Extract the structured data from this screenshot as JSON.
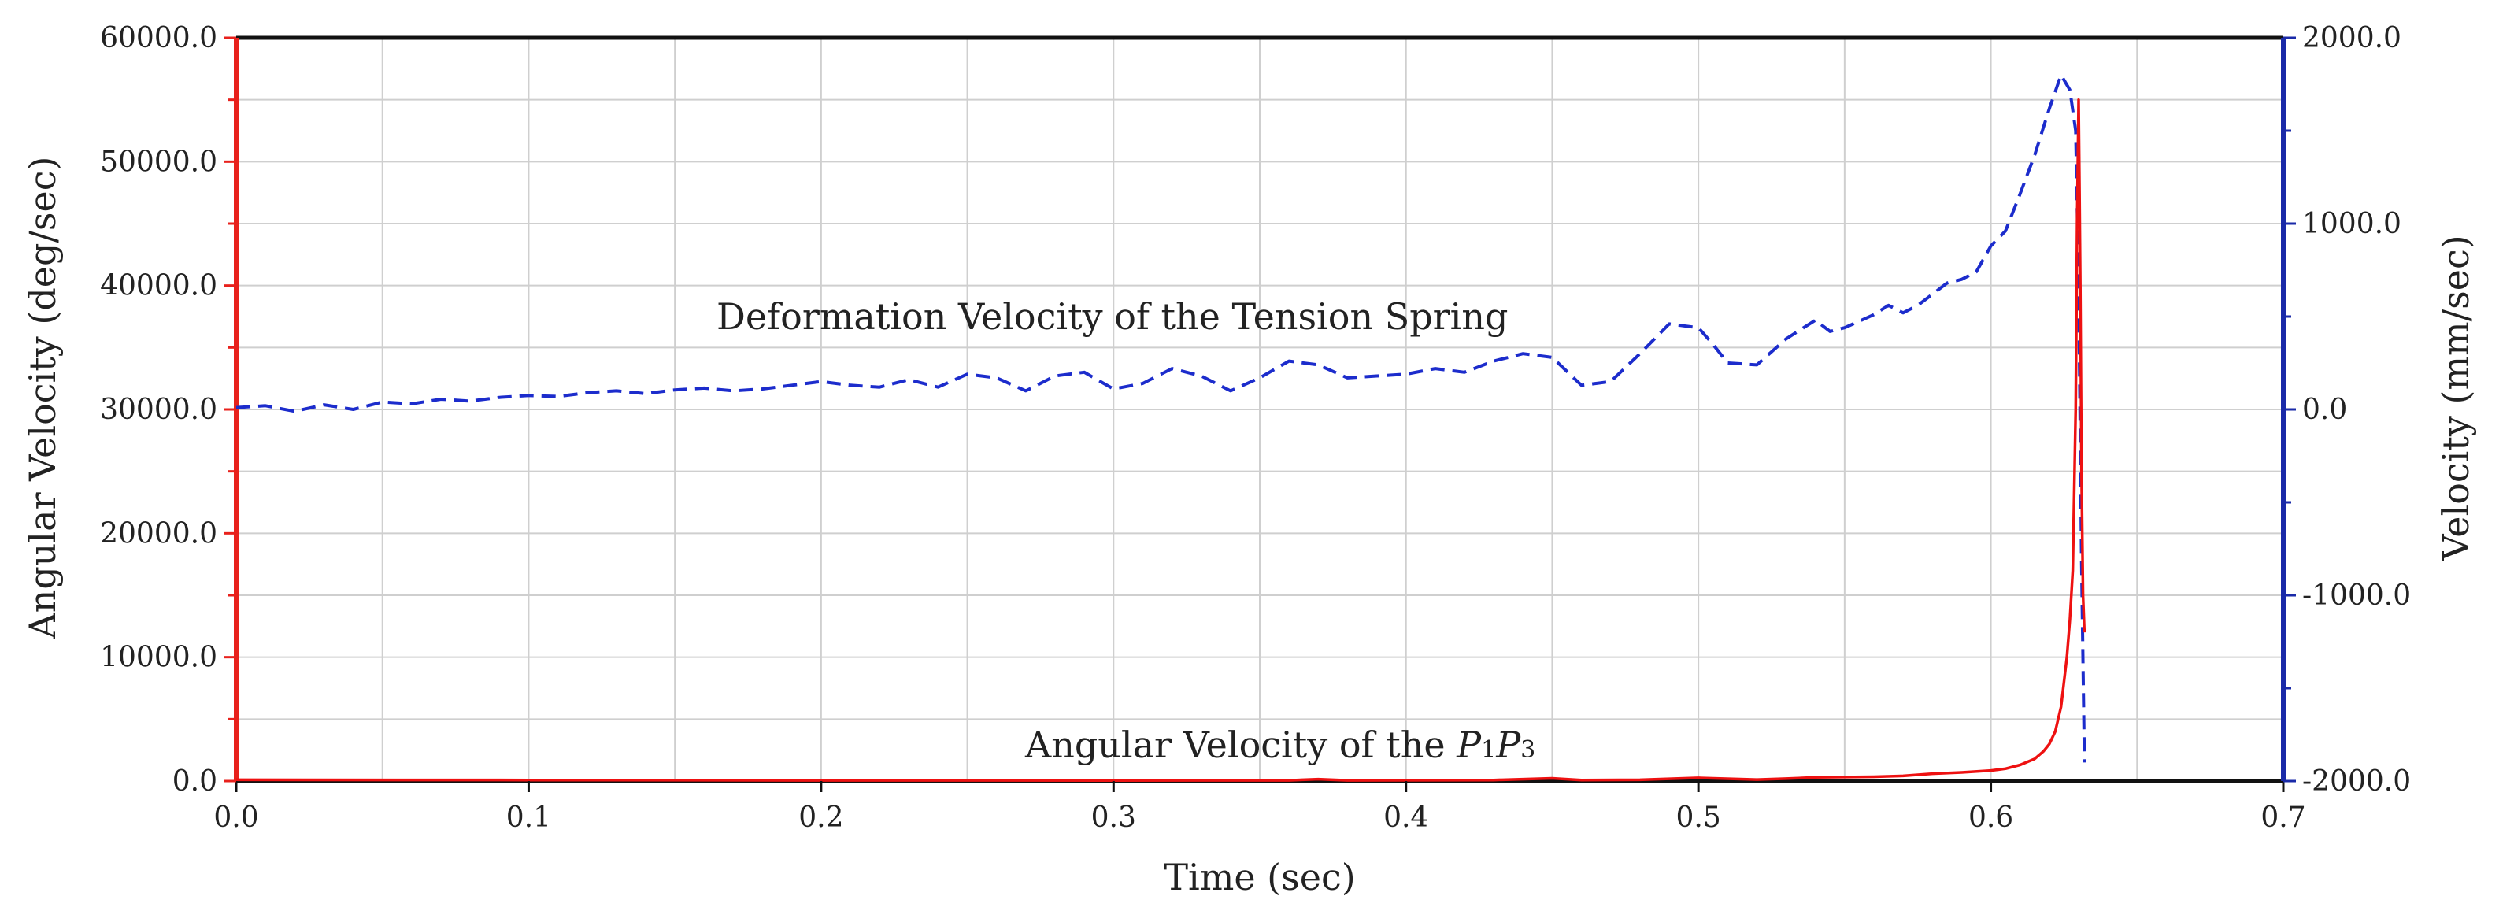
{
  "chart_data": {
    "type": "line",
    "title": "",
    "xlabel": "Time (sec)",
    "ylabel_left": "Angular Velocity (deg/sec)",
    "ylabel_right": "Velocity (mm/sec)",
    "xlim": [
      0.0,
      0.7
    ],
    "ylim_left": [
      0.0,
      60000.0
    ],
    "ylim_right": [
      -2000.0,
      2000.0
    ],
    "x_ticks": [
      "0.0",
      "0.1",
      "0.2",
      "0.3",
      "0.4",
      "0.5",
      "0.6",
      "0.7"
    ],
    "x_tick_values": [
      0.0,
      0.1,
      0.2,
      0.3,
      0.4,
      0.5,
      0.6,
      0.7
    ],
    "y_left_ticks": [
      "0.0",
      "10000.0",
      "20000.0",
      "30000.0",
      "40000.0",
      "50000.0",
      "60000.0"
    ],
    "y_left_tick_values": [
      0,
      10000,
      20000,
      30000,
      40000,
      50000,
      60000
    ],
    "y_right_ticks": [
      "-2000.0",
      "-1000.0",
      "0.0",
      "1000.0",
      "2000.0"
    ],
    "y_right_tick_values": [
      -2000,
      -1000,
      0,
      1000,
      2000
    ],
    "grid": true,
    "colors": {
      "left_axis": "#e8211c",
      "right_axis": "#1a2aa8",
      "angular_series": "#ee1111",
      "deformation_series": "#1c2ccc",
      "grid": "#cfcfcf",
      "frame": "#111111"
    },
    "annotations": {
      "deformation_label": "Deformation Velocity of the Tension Spring",
      "angular_label_prefix": "Angular Velocity of the ",
      "angular_label_p1": "P",
      "angular_label_sub1": "1",
      "angular_label_p3": "P",
      "angular_label_sub3": "3"
    },
    "series": [
      {
        "name": "Deformation Velocity of the Tension Spring",
        "axis": "right",
        "style": "dashed",
        "x": [
          0.0,
          0.01,
          0.02,
          0.03,
          0.04,
          0.05,
          0.06,
          0.07,
          0.08,
          0.09,
          0.1,
          0.11,
          0.12,
          0.13,
          0.14,
          0.15,
          0.16,
          0.17,
          0.18,
          0.19,
          0.2,
          0.21,
          0.22,
          0.23,
          0.24,
          0.25,
          0.26,
          0.27,
          0.28,
          0.29,
          0.3,
          0.31,
          0.32,
          0.33,
          0.34,
          0.35,
          0.36,
          0.37,
          0.38,
          0.39,
          0.4,
          0.41,
          0.42,
          0.43,
          0.44,
          0.45,
          0.46,
          0.47,
          0.48,
          0.49,
          0.5,
          0.505,
          0.51,
          0.52,
          0.53,
          0.54,
          0.545,
          0.55,
          0.56,
          0.565,
          0.57,
          0.575,
          0.58,
          0.585,
          0.59,
          0.595,
          0.6,
          0.605,
          0.61,
          0.615,
          0.62,
          0.624,
          0.627,
          0.629,
          0.63,
          0.631,
          0.632
        ],
        "y": [
          10,
          20,
          -10,
          25,
          0,
          40,
          30,
          55,
          45,
          65,
          75,
          70,
          90,
          100,
          85,
          105,
          115,
          100,
          110,
          130,
          150,
          130,
          120,
          160,
          120,
          190,
          170,
          100,
          180,
          200,
          110,
          140,
          220,
          180,
          100,
          170,
          260,
          240,
          170,
          180,
          190,
          220,
          200,
          260,
          300,
          280,
          130,
          150,
          300,
          460,
          440,
          350,
          250,
          240,
          380,
          480,
          420,
          440,
          510,
          560,
          520,
          560,
          620,
          680,
          700,
          740,
          880,
          960,
          1160,
          1370,
          1620,
          1800,
          1720,
          1500,
          700,
          -800,
          -1900
        ]
      },
      {
        "name": "Angular Velocity of the P1P3",
        "axis": "left",
        "style": "solid",
        "x": [
          0.0,
          0.1,
          0.2,
          0.3,
          0.36,
          0.37,
          0.38,
          0.43,
          0.45,
          0.46,
          0.48,
          0.5,
          0.52,
          0.53,
          0.54,
          0.56,
          0.57,
          0.58,
          0.59,
          0.6,
          0.605,
          0.61,
          0.615,
          0.618,
          0.62,
          0.622,
          0.624,
          0.626,
          0.627,
          0.628,
          0.629,
          0.6295,
          0.63,
          0.6303,
          0.6306,
          0.631,
          0.6315,
          0.632
        ],
        "y": [
          100,
          80,
          60,
          50,
          60,
          150,
          60,
          80,
          220,
          80,
          100,
          260,
          120,
          200,
          300,
          350,
          420,
          600,
          700,
          850,
          1000,
          1300,
          1800,
          2400,
          3000,
          4000,
          6000,
          10000,
          13000,
          17000,
          30000,
          45000,
          55000,
          48000,
          40000,
          25000,
          15000,
          12000
        ]
      }
    ]
  }
}
